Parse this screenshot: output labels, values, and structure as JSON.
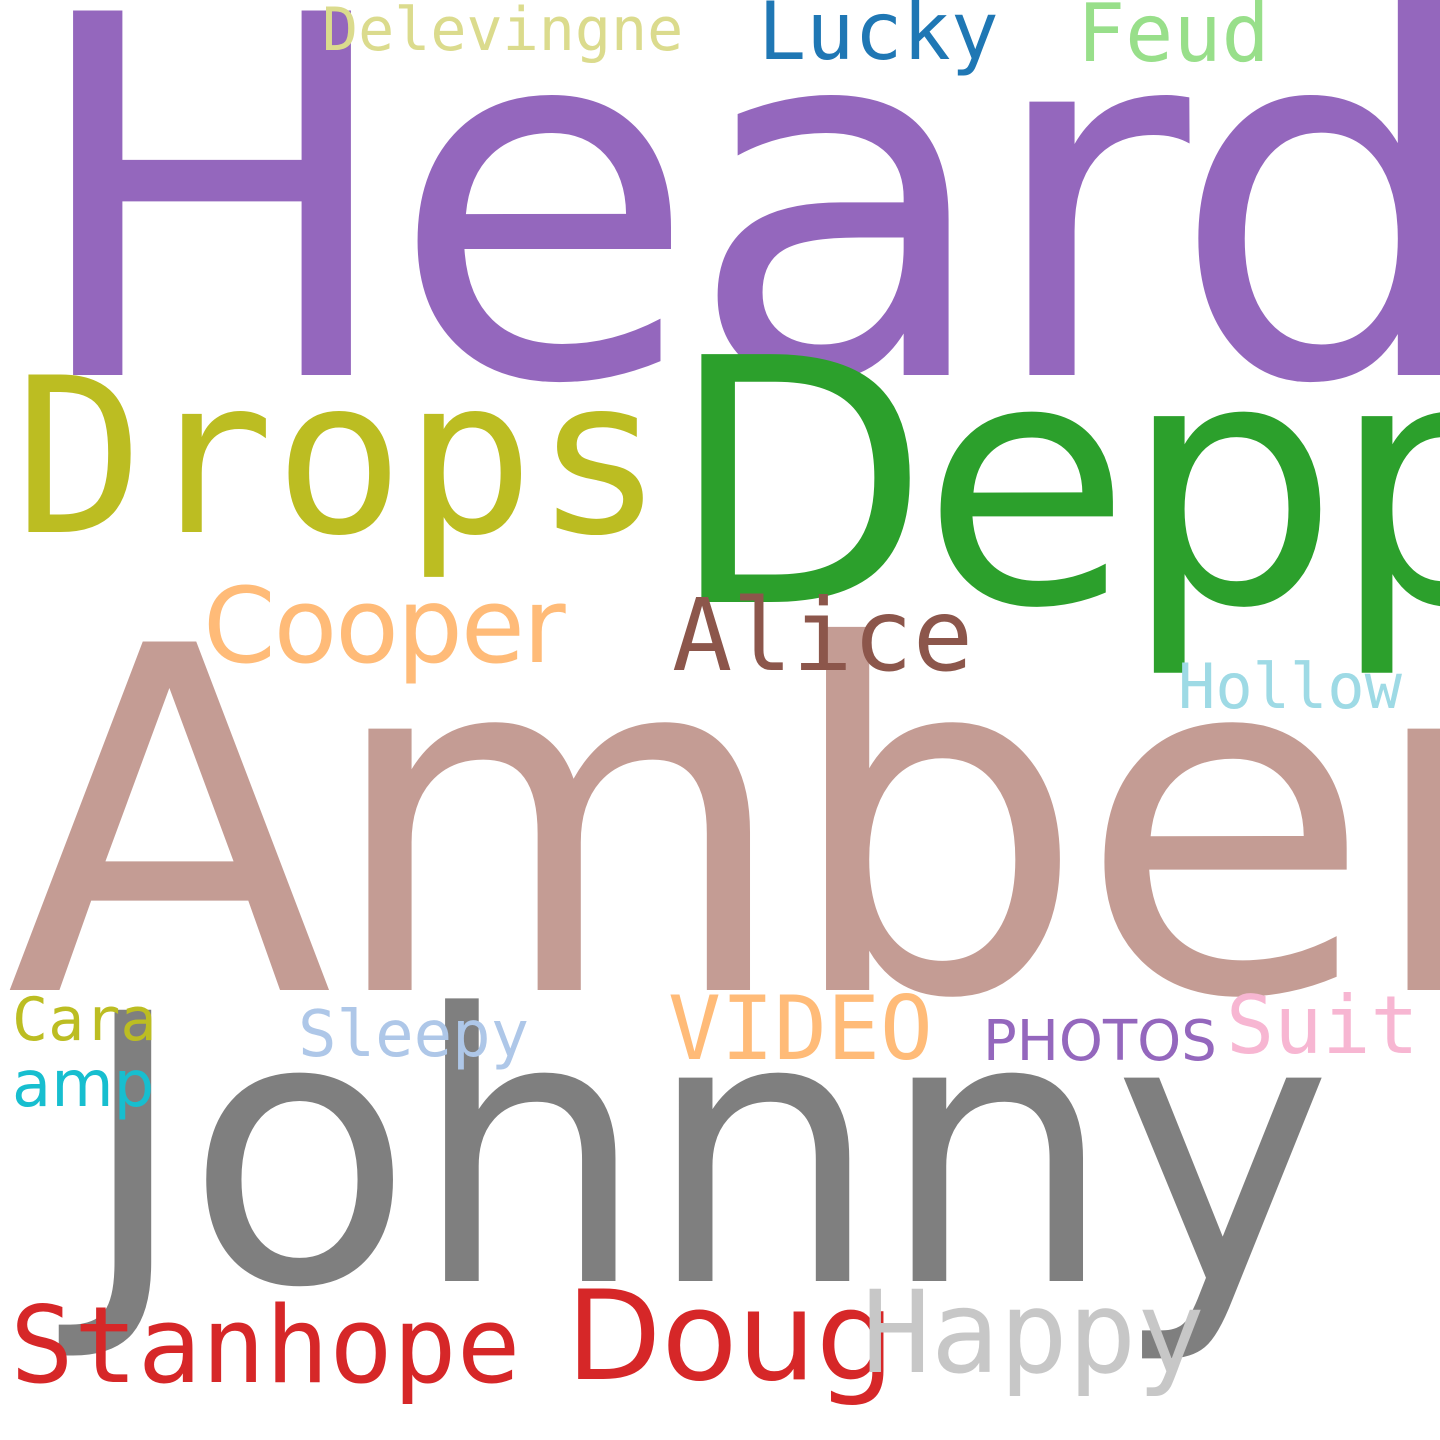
{
  "words": {
    "heard": {
      "text": "Heard",
      "color": "#9467bd"
    },
    "amber": {
      "text": "Amber",
      "color": "#c49c94"
    },
    "johnny": {
      "text": "Johnny",
      "color": "#7f7f7f"
    },
    "depp": {
      "text": "Depp",
      "color": "#2ca02c"
    },
    "drops": {
      "text": "Drops",
      "color": "#bcbd22"
    },
    "doug": {
      "text": "Doug",
      "color": "#d62728"
    },
    "stanhope": {
      "text": "Stanhope",
      "color": "#d62728"
    },
    "happy": {
      "text": "Happy",
      "color": "#c7c7c7"
    },
    "cooper": {
      "text": "Cooper",
      "color": "#ffbb78"
    },
    "alice": {
      "text": "Alice",
      "color": "#8c564b"
    },
    "video": {
      "text": "VIDEO",
      "color": "#ffbb78"
    },
    "suit": {
      "text": "Suit",
      "color": "#f7b6d2"
    },
    "lucky": {
      "text": "Lucky",
      "color": "#1f77b4"
    },
    "feud": {
      "text": "Feud",
      "color": "#98df8a"
    },
    "hollow": {
      "text": "Hollow",
      "color": "#9edae5"
    },
    "delevingne": {
      "text": "Delevingne",
      "color": "#dbdb8d"
    },
    "sleepy": {
      "text": "Sleepy",
      "color": "#aec7e8"
    },
    "cara": {
      "text": "Cara",
      "color": "#bcbd22"
    },
    "photos": {
      "text": "PHOTOS",
      "color": "#9467bd"
    },
    "amp": {
      "text": "amp",
      "color": "#17becf"
    }
  }
}
